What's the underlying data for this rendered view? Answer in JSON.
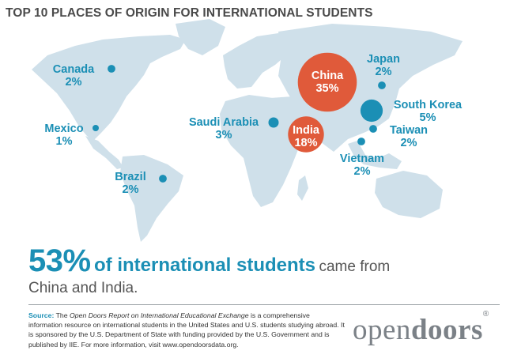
{
  "title": "TOP 10 PLACES OF ORIGIN FOR INTERNATIONAL STUDENTS",
  "colors": {
    "blue": "#1b8fb5",
    "red": "#e05a3a",
    "land": "#cfe0ea",
    "text_gray": "#555555"
  },
  "places": [
    {
      "name": "Canada",
      "share": "2%",
      "percent": 2
    },
    {
      "name": "Mexico",
      "share": "1%",
      "percent": 1
    },
    {
      "name": "Brazil",
      "share": "2%",
      "percent": 2
    },
    {
      "name": "Saudi Arabia",
      "share": "3%",
      "percent": 3
    },
    {
      "name": "China",
      "share": "35%",
      "percent": 35
    },
    {
      "name": "India",
      "share": "18%",
      "percent": 18
    },
    {
      "name": "Japan",
      "share": "2%",
      "percent": 2
    },
    {
      "name": "South Korea",
      "share": "5%",
      "percent": 5
    },
    {
      "name": "Taiwan",
      "share": "2%",
      "percent": 2
    },
    {
      "name": "Vietnam",
      "share": "2%",
      "percent": 2
    }
  ],
  "headline": {
    "big": "53%",
    "bold": "of international students",
    "rest": "came from",
    "line2": "China and India."
  },
  "source": {
    "label": "Source:",
    "t1": "The",
    "publication": "Open Doors Report on International Educational Exchange",
    "t2": "is a comprehensive information resource on international students in the United States and U.S. students studying abroad. It is sponsored by the U.S. Department of State with funding provided by the U.S. Government and is published by IIE. For more information, visit www.opendoorsdata.org."
  },
  "logo": {
    "part1": "open",
    "part2": "doors",
    "mark": "®"
  }
}
